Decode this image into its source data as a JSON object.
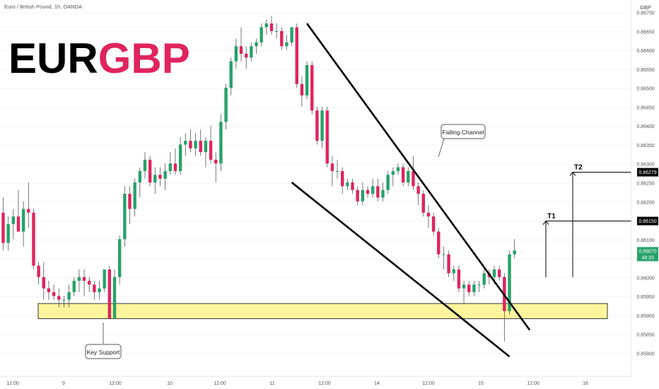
{
  "header": {
    "symbol_line": "Euro / British Pound, 1h, OANDA",
    "currency": "GBP",
    "logo_part1": "EUR",
    "logo_part2": "GBP"
  },
  "colors": {
    "up": "#26a269",
    "down": "#e0245e",
    "support_zone": "#fff59d",
    "last_price_bg": "#26a269",
    "target_label_bg": "#000000"
  },
  "annotations": {
    "falling_channel": "Falling Channel",
    "key_support": "Key Support",
    "t1": "T1",
    "t2": "T2"
  },
  "price_axis": {
    "ticks": [
      "0.86700",
      "0.86650",
      "0.86600",
      "0.86550",
      "0.86500",
      "0.86450",
      "0.86400",
      "0.86350",
      "0.86300",
      "0.86250",
      "0.86200",
      "0.86150",
      "0.86100",
      "0.86050",
      "0.86000",
      "0.85950",
      "0.85900",
      "0.85850",
      "0.85800"
    ],
    "t2_price": "0.86279",
    "t1_price": "0.86150",
    "last_price": "0.86070",
    "countdown": "48:33"
  },
  "time_axis": {
    "labels": [
      "12:00",
      "9",
      "12:00",
      "10",
      "12:00",
      "11",
      "12:00",
      "14",
      "12:00",
      "15",
      "12:00",
      "16"
    ]
  },
  "chart_data": {
    "type": "candlestick",
    "symbol": "EURGBP",
    "timeframe": "1h",
    "ylim": [
      0.8578,
      0.8672
    ],
    "candles": [
      [
        0.86172,
        0.86212,
        0.86072,
        0.86092
      ],
      [
        0.86092,
        0.86162,
        0.86072,
        0.86142
      ],
      [
        0.86142,
        0.86182,
        0.86102,
        0.86162
      ],
      [
        0.86162,
        0.86232,
        0.86122,
        0.86122
      ],
      [
        0.86122,
        0.86202,
        0.86082,
        0.86182
      ],
      [
        0.86182,
        0.86252,
        0.86132,
        0.86172
      ],
      [
        0.86172,
        0.86182,
        0.86022,
        0.86032
      ],
      [
        0.86032,
        0.86042,
        0.85982,
        0.86002
      ],
      [
        0.86002,
        0.86042,
        0.85942,
        0.85972
      ],
      [
        0.85972,
        0.85992,
        0.85942,
        0.85962
      ],
      [
        0.85962,
        0.85982,
        0.85942,
        0.85952
      ],
      [
        0.85952,
        0.85972,
        0.85922,
        0.85942
      ],
      [
        0.85942,
        0.85952,
        0.85922,
        0.85942
      ],
      [
        0.85942,
        0.85982,
        0.85922,
        0.85962
      ],
      [
        0.85962,
        0.86002,
        0.85952,
        0.85992
      ],
      [
        0.85992,
        0.86022,
        0.85962,
        0.86002
      ],
      [
        0.86002,
        0.86022,
        0.85952,
        0.85992
      ],
      [
        0.85992,
        0.86002,
        0.85962,
        0.85982
      ],
      [
        0.85982,
        0.85992,
        0.85942,
        0.85962
      ],
      [
        0.85962,
        0.85992,
        0.85942,
        0.85972
      ],
      [
        0.85972,
        0.86022,
        0.85962,
        0.86022
      ],
      [
        0.86022,
        0.86032,
        0.85892,
        0.85892
      ],
      [
        0.85892,
        0.86022,
        0.85892,
        0.86002
      ],
      [
        0.86002,
        0.86112,
        0.85982,
        0.86102
      ],
      [
        0.86102,
        0.86242,
        0.86082,
        0.86222
      ],
      [
        0.86222,
        0.86242,
        0.86142,
        0.86182
      ],
      [
        0.86182,
        0.86262,
        0.86162,
        0.86252
      ],
      [
        0.86252,
        0.86292,
        0.86212,
        0.86282
      ],
      [
        0.86282,
        0.86332,
        0.86262,
        0.86312
      ],
      [
        0.86312,
        0.86322,
        0.86242,
        0.86252
      ],
      [
        0.86252,
        0.86292,
        0.86222,
        0.86272
      ],
      [
        0.86272,
        0.86292,
        0.86242,
        0.86262
      ],
      [
        0.86262,
        0.86302,
        0.86232,
        0.86282
      ],
      [
        0.86282,
        0.86332,
        0.86272,
        0.86302
      ],
      [
        0.86302,
        0.86342,
        0.86272,
        0.86282
      ],
      [
        0.86282,
        0.86372,
        0.86272,
        0.86352
      ],
      [
        0.86352,
        0.86382,
        0.86322,
        0.86362
      ],
      [
        0.86362,
        0.86392,
        0.86332,
        0.86342
      ],
      [
        0.86342,
        0.86382,
        0.86322,
        0.86362
      ],
      [
        0.86362,
        0.86392,
        0.86322,
        0.86332
      ],
      [
        0.86332,
        0.86372,
        0.86292,
        0.86362
      ],
      [
        0.86362,
        0.86402,
        0.86302,
        0.86312
      ],
      [
        0.86312,
        0.86332,
        0.86252,
        0.86302
      ],
      [
        0.86302,
        0.86432,
        0.86282,
        0.86412
      ],
      [
        0.86412,
        0.86512,
        0.86392,
        0.86502
      ],
      [
        0.86502,
        0.86582,
        0.86482,
        0.86572
      ],
      [
        0.86572,
        0.86632,
        0.86552,
        0.86612
      ],
      [
        0.86612,
        0.86662,
        0.86572,
        0.86592
      ],
      [
        0.86592,
        0.86612,
        0.86552,
        0.86582
      ],
      [
        0.86582,
        0.86622,
        0.86572,
        0.86612
      ],
      [
        0.86612,
        0.86632,
        0.86592,
        0.86622
      ],
      [
        0.86622,
        0.86672,
        0.86612,
        0.86662
      ],
      [
        0.86662,
        0.86682,
        0.86642,
        0.86672
      ],
      [
        0.86672,
        0.86692,
        0.86642,
        0.86652
      ],
      [
        0.86652,
        0.86672,
        0.86632,
        0.86652
      ],
      [
        0.86652,
        0.86662,
        0.86602,
        0.86612
      ],
      [
        0.86612,
        0.86642,
        0.86602,
        0.86622
      ],
      [
        0.86622,
        0.86662,
        0.86612,
        0.86662
      ],
      [
        0.86662,
        0.86672,
        0.86502,
        0.86512
      ],
      [
        0.86512,
        0.86532,
        0.86452,
        0.86482
      ],
      [
        0.86482,
        0.86572,
        0.86472,
        0.86562
      ],
      [
        0.86562,
        0.86572,
        0.86432,
        0.86442
      ],
      [
        0.86442,
        0.86452,
        0.86352,
        0.86362
      ],
      [
        0.86362,
        0.86452,
        0.86342,
        0.86442
      ],
      [
        0.86442,
        0.86452,
        0.86292,
        0.86302
      ],
      [
        0.86302,
        0.86322,
        0.86242,
        0.86282
      ],
      [
        0.86282,
        0.86312,
        0.86262,
        0.86282
      ],
      [
        0.86282,
        0.86292,
        0.86222,
        0.86242
      ],
      [
        0.86242,
        0.86262,
        0.86232,
        0.86252
      ],
      [
        0.86252,
        0.86262,
        0.86222,
        0.86232
      ],
      [
        0.86232,
        0.86242,
        0.86192,
        0.86202
      ],
      [
        0.86202,
        0.86252,
        0.86192,
        0.86232
      ],
      [
        0.86232,
        0.86242,
        0.86212,
        0.86222
      ],
      [
        0.86222,
        0.86262,
        0.86212,
        0.86242
      ],
      [
        0.86242,
        0.86262,
        0.86202,
        0.86212
      ],
      [
        0.86212,
        0.86252,
        0.86202,
        0.86232
      ],
      [
        0.86232,
        0.86282,
        0.86222,
        0.86272
      ],
      [
        0.86272,
        0.86292,
        0.86242,
        0.86282
      ],
      [
        0.86282,
        0.86302,
        0.86272,
        0.86292
      ],
      [
        0.86292,
        0.86302,
        0.86242,
        0.86252
      ],
      [
        0.86252,
        0.86292,
        0.86242,
        0.86282
      ],
      [
        0.86282,
        0.86322,
        0.86232,
        0.86242
      ],
      [
        0.86242,
        0.86252,
        0.86192,
        0.86222
      ],
      [
        0.86222,
        0.86232,
        0.86162,
        0.86172
      ],
      [
        0.86172,
        0.86192,
        0.86132,
        0.86162
      ],
      [
        0.86162,
        0.86172,
        0.86112,
        0.86122
      ],
      [
        0.86122,
        0.86132,
        0.86052,
        0.86062
      ],
      [
        0.86062,
        0.86082,
        0.86022,
        0.86062
      ],
      [
        0.86062,
        0.86072,
        0.86002,
        0.86012
      ],
      [
        0.86012,
        0.86032,
        0.85992,
        0.86022
      ],
      [
        0.86022,
        0.86032,
        0.85962,
        0.85972
      ],
      [
        0.85972,
        0.85992,
        0.85932,
        0.85982
      ],
      [
        0.85982,
        0.85992,
        0.85952,
        0.85962
      ],
      [
        0.85962,
        0.85992,
        0.85952,
        0.85982
      ],
      [
        0.85982,
        0.85992,
        0.85962,
        0.85982
      ],
      [
        0.85982,
        0.86022,
        0.85972,
        0.86012
      ],
      [
        0.86012,
        0.86022,
        0.85982,
        0.86002
      ],
      [
        0.86002,
        0.86032,
        0.85982,
        0.86022
      ],
      [
        0.86022,
        0.86032,
        0.85992,
        0.86002
      ],
      [
        0.86002,
        0.86012,
        0.85832,
        0.85912
      ],
      [
        0.85912,
        0.86072,
        0.85902,
        0.86062
      ],
      [
        0.86062,
        0.86102,
        0.86052,
        0.86072
      ]
    ],
    "support_zone": [
      0.85892,
      0.85932
    ],
    "channel_upper": [
      [
        60,
        0.86672
      ],
      [
        104,
        0.85862
      ]
    ],
    "channel_lower": [
      [
        57,
        0.86252
      ],
      [
        100,
        0.85792
      ]
    ],
    "targets": [
      {
        "label": "T1",
        "price": 0.8615
      },
      {
        "label": "T2",
        "price": 0.86279
      }
    ],
    "last_price": 0.8607
  }
}
